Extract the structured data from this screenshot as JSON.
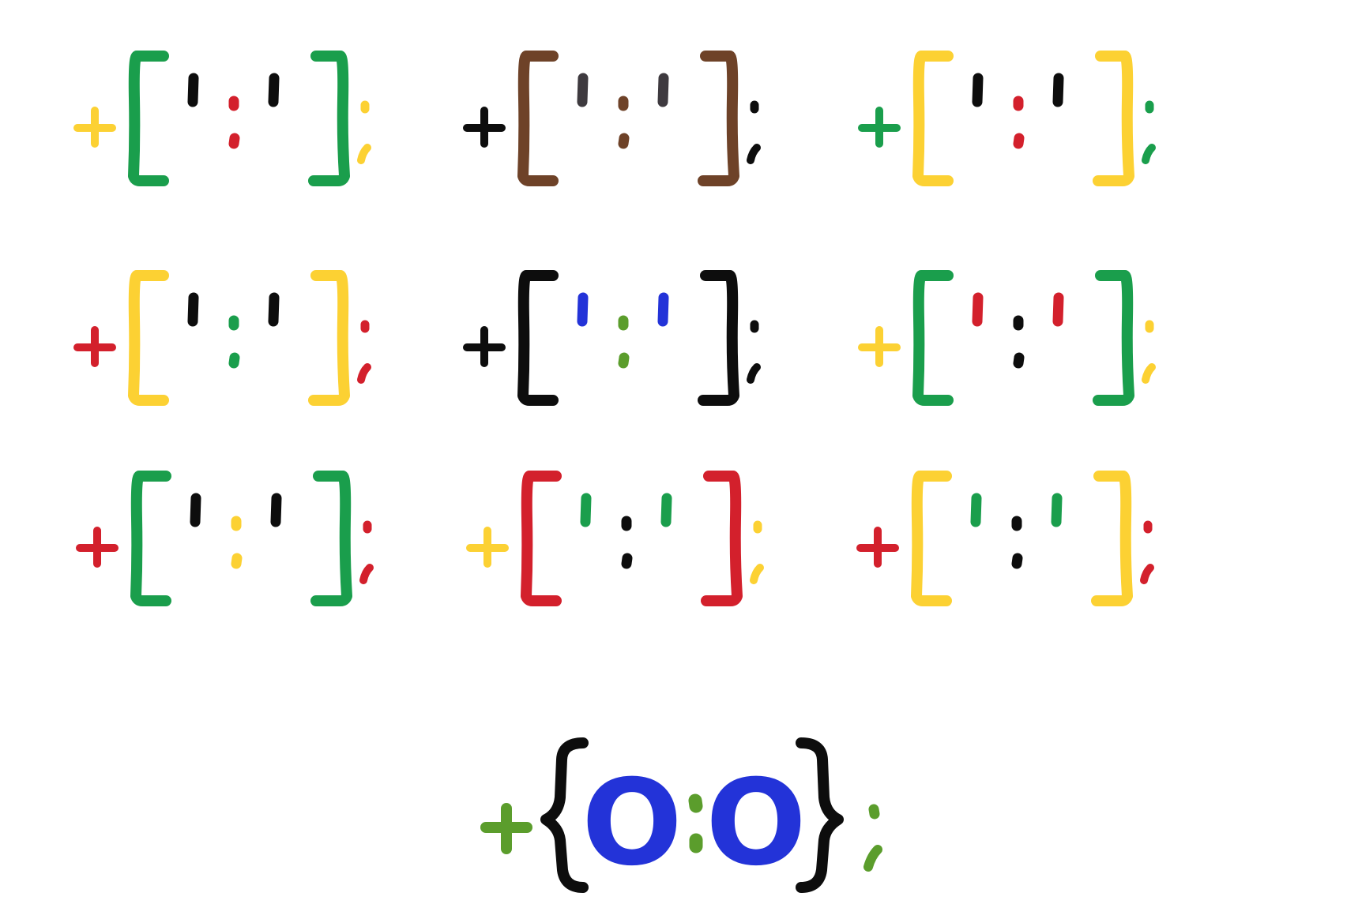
{
  "palette": {
    "green": "#1a9e4c",
    "brown": "#6e4228",
    "yellow": "#fcd133",
    "black": "#0d0d0d",
    "red": "#d3202c",
    "blue": "#2333d8",
    "olive": "#5b9d2c",
    "darkgray": "#3e3a3f"
  },
  "emoticons": [
    {
      "name": "emoticon-1",
      "plus": "yellow",
      "bracket": "green",
      "eyes": "black",
      "colon": "red",
      "semicolon": "yellow"
    },
    {
      "name": "emoticon-2",
      "plus": "black",
      "bracket": "brown",
      "eyes": "darkgray",
      "colon": "brown",
      "semicolon": "black"
    },
    {
      "name": "emoticon-3",
      "plus": "green",
      "bracket": "yellow",
      "eyes": "black",
      "colon": "red",
      "semicolon": "green"
    },
    {
      "name": "emoticon-4",
      "plus": "red",
      "bracket": "yellow",
      "eyes": "black",
      "colon": "green",
      "semicolon": "red"
    },
    {
      "name": "emoticon-5",
      "plus": "black",
      "bracket": "black",
      "eyes": "blue",
      "colon": "olive",
      "semicolon": "black"
    },
    {
      "name": "emoticon-6",
      "plus": "yellow",
      "bracket": "green",
      "eyes": "red",
      "colon": "black",
      "semicolon": "yellow"
    },
    {
      "name": "emoticon-7",
      "plus": "red",
      "bracket": "green",
      "eyes": "black",
      "colon": "yellow",
      "semicolon": "red"
    },
    {
      "name": "emoticon-8",
      "plus": "yellow",
      "bracket": "red",
      "eyes": "green",
      "colon": "black",
      "semicolon": "yellow"
    },
    {
      "name": "emoticon-9",
      "plus": "red",
      "bracket": "yellow",
      "eyes": "green",
      "colon": "black",
      "semicolon": "red"
    }
  ],
  "featured": {
    "name": "emoticon-featured",
    "plus": "olive",
    "brace": "black",
    "eyes": "blue",
    "colon": "olive",
    "semicolon": "olive",
    "eye_glyph": "O"
  }
}
